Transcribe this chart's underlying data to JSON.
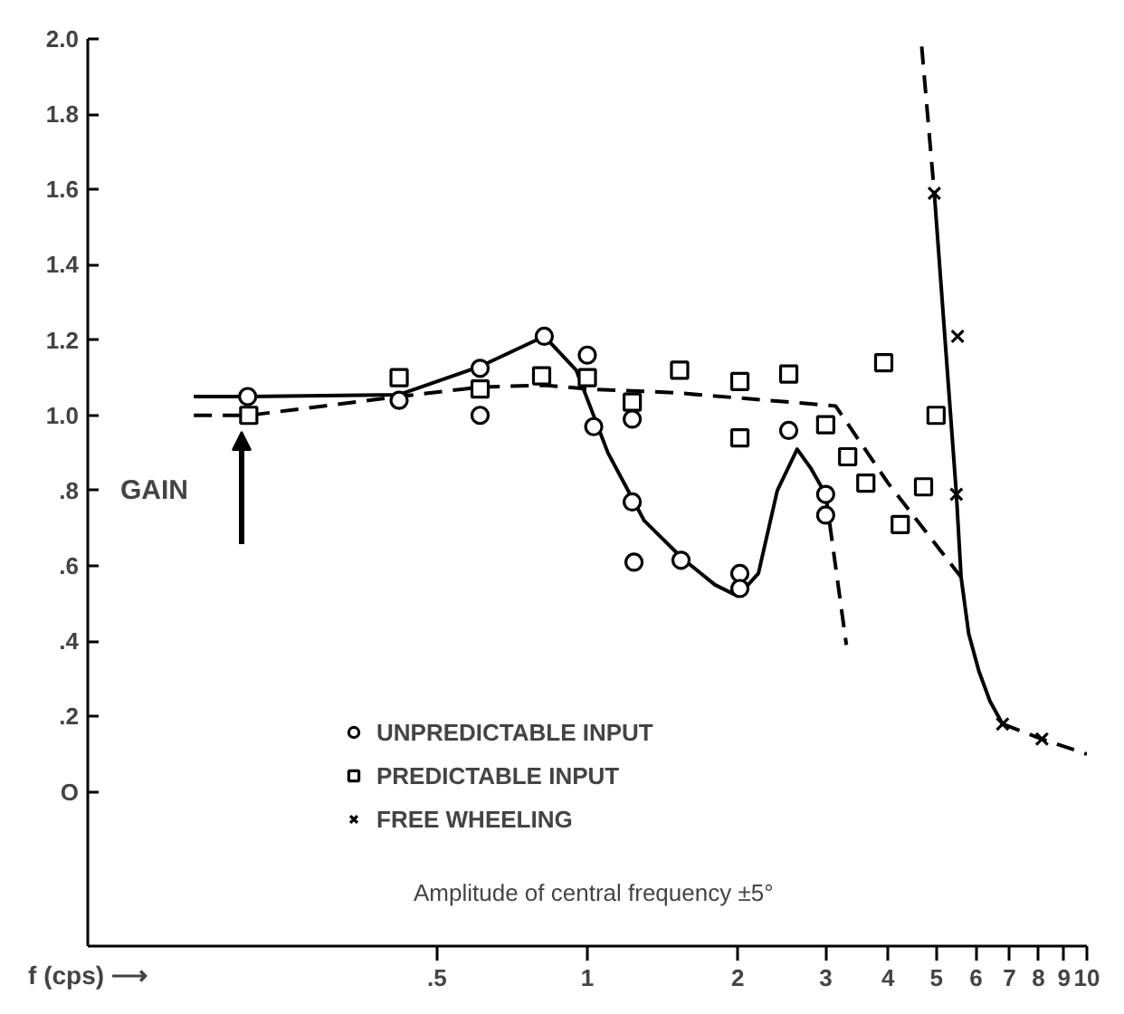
{
  "chart_data": {
    "type": "scatter",
    "xlabel": "f (cps) ⟶",
    "ylabel": "GAIN",
    "log": "x",
    "xlim": [
      0.1,
      10
    ],
    "ylim": [
      -0.41,
      2.0
    ],
    "xticks": [
      {
        "value": 0.5,
        "label": ".5"
      },
      1,
      2,
      3,
      4,
      5,
      6,
      7,
      8,
      9,
      10
    ],
    "yticks": [
      {
        "value": 0,
        "label": "O"
      },
      {
        "value": 0.2,
        "label": ".2"
      },
      {
        "value": 0.4,
        "label": ".4"
      },
      {
        "value": 0.6,
        "label": ".6"
      },
      {
        "value": 0.8,
        "label": ".8"
      },
      {
        "value": 1.0,
        "label": "1.0"
      },
      {
        "value": 1.2,
        "label": "1.2"
      },
      {
        "value": 1.4,
        "label": "1.4"
      },
      {
        "value": 1.6,
        "label": "1.6"
      },
      {
        "value": 1.8,
        "label": "1.8"
      },
      {
        "value": 2.0,
        "label": "2.0"
      }
    ],
    "grid": false,
    "legend": "bottom left",
    "annotations": [
      "Amplitude of central frequency ±5°"
    ],
    "series": [
      {
        "type": "line",
        "line_style": "solid",
        "color": "#000000",
        "x": [
          0.163,
          0.21,
          0.42,
          0.61,
          0.82,
          0.95,
          1.1,
          1.3,
          1.55,
          1.8,
          2.0,
          2.2,
          2.4,
          2.63,
          2.8,
          3.0
        ],
        "values": [
          1.05,
          1.05,
          1.055,
          1.13,
          1.21,
          1.12,
          0.9,
          0.72,
          0.62,
          0.55,
          0.52,
          0.58,
          0.8,
          0.91,
          0.86,
          0.79
        ]
      },
      {
        "type": "line",
        "line_style": "dashed",
        "color": "#000000",
        "x": [
          3.0,
          3.3
        ],
        "values": [
          0.79,
          0.39
        ]
      },
      {
        "type": "line",
        "line_style": "dashed",
        "color": "#000000",
        "x": [
          0.163,
          0.21,
          0.42,
          0.61,
          0.82,
          1.0,
          1.5,
          3.14,
          4.0,
          5.6
        ],
        "values": [
          1.0,
          1.0,
          1.05,
          1.075,
          1.08,
          1.07,
          1.06,
          1.025,
          0.82,
          0.57
        ]
      },
      {
        "type": "line",
        "line_style": "dashed",
        "color": "#000000",
        "x": [
          4.67,
          4.95
        ],
        "values": [
          1.98,
          1.59
        ]
      },
      {
        "type": "line",
        "line_style": "solid",
        "color": "#000000",
        "x": [
          4.95,
          5.48,
          5.6,
          5.8,
          6.08,
          6.4,
          6.78
        ],
        "values": [
          1.59,
          0.79,
          0.57,
          0.42,
          0.32,
          0.24,
          0.18
        ]
      },
      {
        "type": "line",
        "line_style": "dashed",
        "color": "#000000",
        "x": [
          6.78,
          8.13,
          10
        ],
        "values": [
          0.18,
          0.14,
          0.1
        ]
      },
      {
        "name": "UNPREDICTABLE INPUT",
        "marker": "circle",
        "color": "#000000",
        "x": [
          0.209,
          0.42,
          0.61,
          0.61,
          0.82,
          1.0,
          1.03,
          1.23,
          1.23,
          1.24,
          1.54,
          2.02,
          2.02,
          2.53,
          3.0,
          3.0
        ],
        "values": [
          1.05,
          1.04,
          1.125,
          1.0,
          1.21,
          1.16,
          0.97,
          0.99,
          0.77,
          0.61,
          0.615,
          0.58,
          0.54,
          0.96,
          0.79,
          0.735
        ]
      },
      {
        "name": "PREDICTABLE INPUT",
        "marker": "square",
        "color": "#000000",
        "x": [
          0.21,
          0.42,
          0.61,
          0.81,
          1.0,
          1.23,
          1.53,
          2.02,
          2.02,
          2.53,
          3.0,
          3.32,
          3.61,
          3.92,
          4.23,
          4.71,
          4.99
        ],
        "values": [
          1.0,
          1.1,
          1.07,
          1.105,
          1.1,
          1.035,
          1.12,
          1.09,
          0.94,
          1.11,
          0.975,
          0.89,
          0.82,
          1.14,
          0.71,
          0.81,
          1.0
        ]
      },
      {
        "name": "FREE WHEELING",
        "marker": "cross",
        "color": "#000000",
        "x": [
          4.95,
          5.51,
          5.48,
          6.78,
          8.13
        ],
        "values": [
          1.59,
          1.21,
          0.79,
          0.18,
          0.14
        ]
      }
    ]
  }
}
